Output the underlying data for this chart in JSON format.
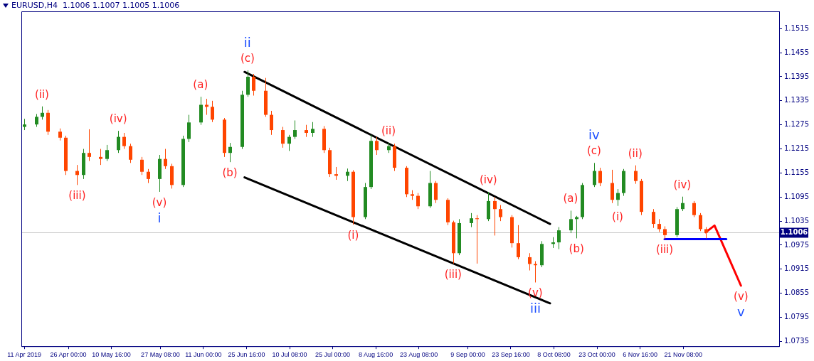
{
  "chart_data": {
    "type": "candlestick",
    "title": "EURUSD,H4  1.1006 1.1007 1.1005 1.1006",
    "xlim": [
      "2019-04-10",
      "2019-12-24"
    ],
    "xticks": [
      {
        "value": "2019-04-11T00:00",
        "label": "11 Apr 2019"
      },
      {
        "value": "2019-04-26T00:00",
        "label": "26 Apr 00:00"
      },
      {
        "value": "2019-05-10T16:00",
        "label": "10 May 16:00"
      },
      {
        "value": "2019-05-27T08:00",
        "label": "27 May 08:00"
      },
      {
        "value": "2019-06-11T00:00",
        "label": "11 Jun 00:00"
      },
      {
        "value": "2019-06-25T16:00",
        "label": "25 Jun 16:00"
      },
      {
        "value": "2019-07-10T08:00",
        "label": "10 Jul 08:00"
      },
      {
        "value": "2019-07-25T00:00",
        "label": "25 Jul 00:00"
      },
      {
        "value": "2019-08-08T16:00",
        "label": "8 Aug 16:00"
      },
      {
        "value": "2019-08-23T08:00",
        "label": "23 Aug 08:00"
      },
      {
        "value": "2019-09-09T00:00",
        "label": "9 Sep 00:00"
      },
      {
        "value": "2019-09-23T16:00",
        "label": "23 Sep 16:00"
      },
      {
        "value": "2019-10-08T08:00",
        "label": "8 Oct 08:00"
      },
      {
        "value": "2019-10-23T00:00",
        "label": "23 Oct 00:00"
      },
      {
        "value": "2019-11-06T16:00",
        "label": "6 Nov 16:00"
      },
      {
        "value": "2019-11-21T08:00",
        "label": "21 Nov 08:00"
      }
    ],
    "ylim": [
      1.0723,
      1.1558
    ],
    "yticks": [
      1.0735,
      1.0795,
      1.0855,
      1.0915,
      1.0975,
      1.1035,
      1.1095,
      1.1155,
      1.1215,
      1.1275,
      1.1335,
      1.1395,
      1.1455,
      1.1515
    ],
    "grid": false,
    "legend": false,
    "series": [
      {
        "type": "candlestick",
        "x": [
          "2019-04-11",
          "2019-04-15",
          "2019-04-17",
          "2019-04-19",
          "2019-04-23",
          "2019-04-25",
          "2019-04-29",
          "2019-05-01",
          "2019-05-03",
          "2019-05-07",
          "2019-05-09",
          "2019-05-13",
          "2019-05-15",
          "2019-05-17",
          "2019-05-21",
          "2019-05-23",
          "2019-05-27",
          "2019-05-29",
          "2019-05-31",
          "2019-06-04",
          "2019-06-06",
          "2019-06-10",
          "2019-06-12",
          "2019-06-14",
          "2019-06-18",
          "2019-06-20",
          "2019-06-24",
          "2019-06-26",
          "2019-06-28",
          "2019-07-02",
          "2019-07-04",
          "2019-07-08",
          "2019-07-10",
          "2019-07-12",
          "2019-07-16",
          "2019-07-18",
          "2019-07-22",
          "2019-07-24",
          "2019-07-26",
          "2019-07-30",
          "2019-08-01",
          "2019-08-05",
          "2019-08-07",
          "2019-08-09",
          "2019-08-13",
          "2019-08-15",
          "2019-08-19",
          "2019-08-21",
          "2019-08-23",
          "2019-08-27",
          "2019-08-29",
          "2019-09-02",
          "2019-09-04",
          "2019-09-06",
          "2019-09-10",
          "2019-09-12",
          "2019-09-16",
          "2019-09-18",
          "2019-09-20",
          "2019-09-24",
          "2019-09-26",
          "2019-09-30",
          "2019-10-02",
          "2019-10-04",
          "2019-10-08",
          "2019-10-10",
          "2019-10-14",
          "2019-10-16",
          "2019-10-18",
          "2019-10-22",
          "2019-10-24",
          "2019-10-28",
          "2019-10-30",
          "2019-11-01",
          "2019-11-05",
          "2019-11-07",
          "2019-11-11",
          "2019-11-13",
          "2019-11-15",
          "2019-11-19",
          "2019-11-21",
          "2019-11-25",
          "2019-11-27",
          "2019-11-29"
        ],
        "ohlc": [
          [
            1.127,
            1.129,
            1.1262,
            1.1276
          ],
          [
            1.1276,
            1.1302,
            1.127,
            1.1295
          ],
          [
            1.1295,
            1.1321,
            1.1288,
            1.1305
          ],
          [
            1.1305,
            1.1312,
            1.125,
            1.1258
          ],
          [
            1.1258,
            1.1266,
            1.1236,
            1.1243
          ],
          [
            1.1243,
            1.1248,
            1.115,
            1.116
          ],
          [
            1.116,
            1.1175,
            1.1125,
            1.115
          ],
          [
            1.115,
            1.1215,
            1.114,
            1.1205
          ],
          [
            1.1205,
            1.1264,
            1.1185,
            1.1195
          ],
          [
            1.1195,
            1.1215,
            1.1175,
            1.119
          ],
          [
            1.119,
            1.1225,
            1.1185,
            1.1212
          ],
          [
            1.1212,
            1.126,
            1.1205,
            1.1245
          ],
          [
            1.1245,
            1.1255,
            1.1215,
            1.1222
          ],
          [
            1.1222,
            1.1228,
            1.118,
            1.1188
          ],
          [
            1.1188,
            1.1195,
            1.115,
            1.1158
          ],
          [
            1.1158,
            1.1165,
            1.113,
            1.114
          ],
          [
            1.114,
            1.12,
            1.1108,
            1.119
          ],
          [
            1.119,
            1.1215,
            1.1165,
            1.1172
          ],
          [
            1.1172,
            1.1178,
            1.1116,
            1.1125
          ],
          [
            1.1125,
            1.1248,
            1.112,
            1.124
          ],
          [
            1.124,
            1.13,
            1.1232,
            1.1281
          ],
          [
            1.1281,
            1.1345,
            1.1275,
            1.1325
          ],
          [
            1.1325,
            1.134,
            1.13,
            1.132
          ],
          [
            1.132,
            1.1335,
            1.1282,
            1.1288
          ],
          [
            1.1288,
            1.1292,
            1.1195,
            1.1205
          ],
          [
            1.1205,
            1.123,
            1.1182,
            1.122
          ],
          [
            1.122,
            1.136,
            1.1215,
            1.135
          ],
          [
            1.135,
            1.1411,
            1.1345,
            1.1395
          ],
          [
            1.1395,
            1.1402,
            1.1348,
            1.136
          ],
          [
            1.136,
            1.1392,
            1.1295,
            1.13
          ],
          [
            1.13,
            1.131,
            1.125,
            1.1262
          ],
          [
            1.1262,
            1.127,
            1.1218,
            1.1228
          ],
          [
            1.1228,
            1.125,
            1.121,
            1.1245
          ],
          [
            1.1245,
            1.1286,
            1.124,
            1.1262
          ],
          [
            1.1262,
            1.1275,
            1.1245,
            1.1255
          ],
          [
            1.1255,
            1.1282,
            1.1245,
            1.1265
          ],
          [
            1.1265,
            1.1272,
            1.1205,
            1.1212
          ],
          [
            1.1212,
            1.1218,
            1.1145,
            1.1152
          ],
          [
            1.1152,
            1.117,
            1.1138,
            1.1148
          ],
          [
            1.1148,
            1.1166,
            1.1135,
            1.1158
          ],
          [
            1.1158,
            1.1162,
            1.1026,
            1.1045
          ],
          [
            1.1045,
            1.113,
            1.104,
            1.112
          ],
          [
            1.112,
            1.125,
            1.1115,
            1.1235
          ],
          [
            1.1235,
            1.1245,
            1.12,
            1.1212
          ],
          [
            1.1212,
            1.123,
            1.1205,
            1.1222
          ],
          [
            1.1222,
            1.1228,
            1.116,
            1.1168
          ],
          [
            1.1168,
            1.1172,
            1.1095,
            1.1102
          ],
          [
            1.1102,
            1.1112,
            1.1088,
            1.1098
          ],
          [
            1.1098,
            1.1105,
            1.1065,
            1.1072
          ],
          [
            1.1072,
            1.116,
            1.1068,
            1.113
          ],
          [
            1.113,
            1.1135,
            1.108,
            1.1088
          ],
          [
            1.1088,
            1.1092,
            1.1025,
            1.1032
          ],
          [
            1.1032,
            1.1036,
            1.0929,
            1.0955
          ],
          [
            1.0955,
            1.104,
            1.095,
            1.103
          ],
          [
            1.103,
            1.1055,
            1.102,
            1.1042
          ],
          [
            1.1042,
            1.105,
            1.0929,
            1.104
          ],
          [
            1.104,
            1.1108,
            1.1035,
            1.1085
          ],
          [
            1.1085,
            1.1095,
            1.0999,
            1.1065
          ],
          [
            1.1065,
            1.1075,
            1.1035,
            1.1045
          ],
          [
            1.1045,
            1.105,
            1.0969,
            1.098
          ],
          [
            1.098,
            1.1025,
            1.094,
            1.0945
          ],
          [
            1.0945,
            1.0955,
            1.0912,
            1.0928
          ],
          [
            1.0928,
            1.0935,
            1.0882,
            1.0925
          ],
          [
            1.0925,
            1.0985,
            1.092,
            1.0978
          ],
          [
            1.0978,
            1.0995,
            1.0968,
            1.0982
          ],
          [
            1.0982,
            1.102,
            1.0965,
            1.1012
          ],
          [
            1.1012,
            1.1061,
            1.1005,
            1.104
          ],
          [
            1.104,
            1.1048,
            1.0992,
            1.1045
          ],
          [
            1.1045,
            1.113,
            1.104,
            1.1125
          ],
          [
            1.1125,
            1.118,
            1.112,
            1.116
          ],
          [
            1.116,
            1.1168,
            1.1122,
            1.113
          ],
          [
            1.113,
            1.1163,
            1.108,
            1.1088
          ],
          [
            1.1088,
            1.1115,
            1.1073,
            1.1105
          ],
          [
            1.1105,
            1.1165,
            1.1098,
            1.116
          ],
          [
            1.116,
            1.1174,
            1.1128,
            1.1135
          ],
          [
            1.1135,
            1.114,
            1.105,
            1.1058
          ],
          [
            1.1058,
            1.1065,
            1.1018,
            1.1028
          ],
          [
            1.1028,
            1.104,
            1.1008,
            1.1015
          ],
          [
            1.1015,
            1.1022,
            1.099,
            1.1
          ],
          [
            1.1,
            1.107,
            1.0995,
            1.1065
          ],
          [
            1.1065,
            1.1096,
            1.106,
            1.108
          ],
          [
            1.108,
            1.1085,
            1.1045,
            1.105
          ],
          [
            1.105,
            1.1055,
            1.101,
            1.1015
          ],
          [
            1.1015,
            1.102,
            1.0992,
            1.1006
          ]
        ],
        "colors": [
          "#228b22",
          "#228b22",
          "#228b22",
          "#ff4500",
          "#ff4500",
          "#ff4500",
          "#ff4500",
          "#228b22",
          "#ff4500",
          "#ff4500",
          "#228b22",
          "#228b22",
          "#ff4500",
          "#ff4500",
          "#ff4500",
          "#ff4500",
          "#228b22",
          "#ff4500",
          "#ff4500",
          "#228b22",
          "#228b22",
          "#228b22",
          "#ff4500",
          "#ff4500",
          "#ff4500",
          "#228b22",
          "#228b22",
          "#228b22",
          "#ff4500",
          "#ff4500",
          "#ff4500",
          "#ff4500",
          "#228b22",
          "#228b22",
          "#ff4500",
          "#228b22",
          "#ff4500",
          "#ff4500",
          "#ff4500",
          "#228b22",
          "#ff4500",
          "#228b22",
          "#228b22",
          "#ff4500",
          "#228b22",
          "#ff4500",
          "#ff4500",
          "#ff4500",
          "#ff4500",
          "#228b22",
          "#ff4500",
          "#ff4500",
          "#ff4500",
          "#228b22",
          "#228b22",
          "#ff4500",
          "#228b22",
          "#ff4500",
          "#ff4500",
          "#ff4500",
          "#ff4500",
          "#ff4500",
          "#ff4500",
          "#228b22",
          "#228b22",
          "#228b22",
          "#228b22",
          "#228b22",
          "#228b22",
          "#228b22",
          "#ff4500",
          "#ff4500",
          "#228b22",
          "#228b22",
          "#ff4500",
          "#ff4500",
          "#ff4500",
          "#ff4500",
          "#ff4500",
          "#228b22",
          "#228b22",
          "#ff4500",
          "#ff4500",
          "#ff4500"
        ]
      },
      {
        "type": "line",
        "x": [
          "2019-06-25",
          "2019-10-07"
        ],
        "values": [
          1.1407,
          1.1028
        ],
        "color": "#000000"
      },
      {
        "type": "line",
        "x": [
          "2019-06-25",
          "2019-10-07"
        ],
        "values": [
          1.1144,
          1.083
        ],
        "color": "#000000"
      },
      {
        "type": "line",
        "x": [
          "2019-11-15",
          "2019-12-06"
        ],
        "values": [
          1.099,
          1.099
        ],
        "color": "#0000ff"
      },
      {
        "type": "line",
        "x": [
          "2019-11-29",
          "2019-12-02",
          "2019-12-11"
        ],
        "values": [
          1.1007,
          1.1024,
          1.0874
        ],
        "color": "#ff0000"
      }
    ],
    "ref_lines": [
      {
        "axis": "y",
        "value": 1.1006,
        "label": "1.1006",
        "color": "#c8c8c8"
      }
    ],
    "annotations": [
      {
        "text": "(ii)",
        "x": "2019-04-17",
        "y": 1.1321
      },
      {
        "text": "(iii)",
        "x": "2019-04-29",
        "y": 1.1125
      },
      {
        "text": "(iv)",
        "x": "2019-05-13",
        "y": 1.126
      },
      {
        "text": "(v)",
        "x": "2019-05-27",
        "y": 1.1108
      },
      {
        "text": "i",
        "x": "2019-05-27",
        "y": 1.1108
      },
      {
        "text": "(a)",
        "x": "2019-06-10",
        "y": 1.1345
      },
      {
        "text": "(b)",
        "x": "2019-06-20",
        "y": 1.1182
      },
      {
        "text": "(c)",
        "x": "2019-06-26",
        "y": 1.1411
      },
      {
        "text": "ii",
        "x": "2019-06-26",
        "y": 1.1411
      },
      {
        "text": "(i)",
        "x": "2019-08-01",
        "y": 1.1026
      },
      {
        "text": "(ii)",
        "x": "2019-08-13",
        "y": 1.123
      },
      {
        "text": "(iii)",
        "x": "2019-09-04",
        "y": 1.0929
      },
      {
        "text": "(iv)",
        "x": "2019-09-16",
        "y": 1.1108
      },
      {
        "text": "(v)",
        "x": "2019-10-02",
        "y": 1.0882
      },
      {
        "text": "iii",
        "x": "2019-10-02",
        "y": 1.0882
      },
      {
        "text": "(a)",
        "x": "2019-10-14",
        "y": 1.1061
      },
      {
        "text": "(b)",
        "x": "2019-10-16",
        "y": 1.0992
      },
      {
        "text": "(c)",
        "x": "2019-10-22",
        "y": 1.118
      },
      {
        "text": "iv",
        "x": "2019-10-22",
        "y": 1.118
      },
      {
        "text": "(i)",
        "x": "2019-10-30",
        "y": 1.1073
      },
      {
        "text": "(ii)",
        "x": "2019-11-05",
        "y": 1.1174
      },
      {
        "text": "(iii)",
        "x": "2019-11-15",
        "y": 1.099
      },
      {
        "text": "(iv)",
        "x": "2019-11-21",
        "y": 1.1096
      },
      {
        "text": "(v)",
        "x": "2019-12-11",
        "y": 1.0874
      },
      {
        "text": "v",
        "x": "2019-12-11",
        "y": 1.0874
      }
    ]
  }
}
